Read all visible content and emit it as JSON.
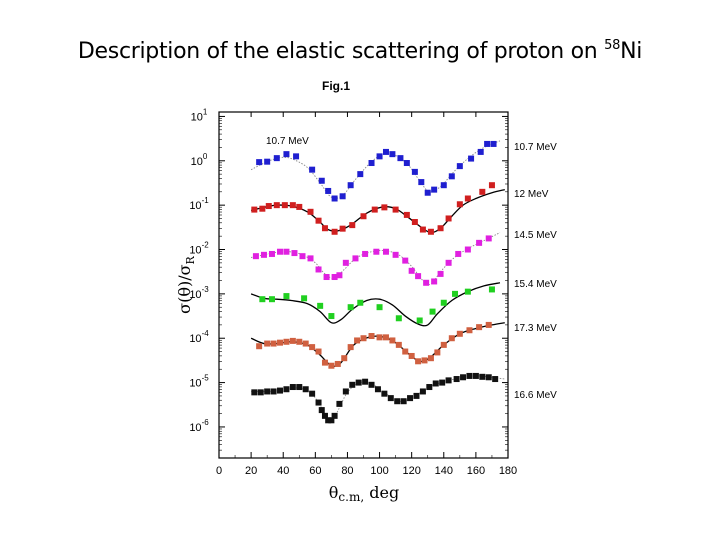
{
  "slide": {
    "title": "Description of the elastic scattering of proton on ",
    "title_sup": "58",
    "title_end": "Ni"
  },
  "chart_data": {
    "type": "scatter",
    "figure_label": "Fig.1",
    "xlabel": "θc.m, deg",
    "ylabel": "σ(θ)/σR",
    "xlim": [
      0,
      180
    ],
    "xticks": [
      0,
      20,
      40,
      60,
      80,
      100,
      120,
      140,
      160,
      180
    ],
    "ylim_exponent": [
      -6.7,
      1.1
    ],
    "yticks": [
      {
        "exp": 1,
        "label": "10",
        "sup": "1"
      },
      {
        "exp": 0,
        "label": "10",
        "sup": "0"
      },
      {
        "exp": -1,
        "label": "10",
        "sup": "-1"
      },
      {
        "exp": -2,
        "label": "10",
        "sup": "-2"
      },
      {
        "exp": -3,
        "label": "10",
        "sup": "-3"
      },
      {
        "exp": -4,
        "label": "10",
        "sup": "-4"
      },
      {
        "exp": -5,
        "label": "10",
        "sup": "-5"
      },
      {
        "exp": -6,
        "label": "10",
        "sup": "-6"
      }
    ],
    "inner_annotation": "10.7 MeV",
    "series": [
      {
        "name": "10.7 MeV",
        "color": "#1f1fd0",
        "line": "dotted",
        "points": [
          [
            25,
            -0.03
          ],
          [
            30,
            -0.02
          ],
          [
            36,
            0.06
          ],
          [
            42,
            0.15
          ],
          [
            48,
            0.1
          ],
          [
            58,
            -0.2
          ],
          [
            64,
            -0.45
          ],
          [
            68,
            -0.68
          ],
          [
            72,
            -0.85
          ],
          [
            77,
            -0.8
          ],
          [
            82,
            -0.55
          ],
          [
            88,
            -0.3
          ],
          [
            95,
            -0.05
          ],
          [
            100,
            0.1
          ],
          [
            104,
            0.2
          ],
          [
            108,
            0.15
          ],
          [
            113,
            0.06
          ],
          [
            117,
            -0.05
          ],
          [
            122,
            -0.25
          ],
          [
            126,
            -0.48
          ],
          [
            130,
            -0.72
          ],
          [
            134,
            -0.65
          ],
          [
            140,
            -0.55
          ],
          [
            145,
            -0.35
          ],
          [
            150,
            -0.12
          ],
          [
            157,
            0.05
          ],
          [
            163,
            0.2
          ],
          [
            167,
            0.38
          ],
          [
            171,
            0.38
          ]
        ],
        "curve": [
          [
            20,
            -0.2
          ],
          [
            30,
            -0.02
          ],
          [
            38,
            0.07
          ],
          [
            45,
            0.05
          ],
          [
            55,
            -0.15
          ],
          [
            63,
            -0.5
          ],
          [
            70,
            -0.82
          ],
          [
            77,
            -0.78
          ],
          [
            85,
            -0.42
          ],
          [
            95,
            -0.02
          ],
          [
            103,
            0.16
          ],
          [
            110,
            0.12
          ],
          [
            118,
            -0.1
          ],
          [
            125,
            -0.45
          ],
          [
            131,
            -0.7
          ],
          [
            138,
            -0.58
          ],
          [
            147,
            -0.22
          ],
          [
            156,
            0.08
          ],
          [
            165,
            0.3
          ],
          [
            175,
            0.45
          ]
        ]
      },
      {
        "name": "12 MeV",
        "color": "#d01f1f",
        "line": "solid",
        "points": [
          [
            22,
            -1.1
          ],
          [
            27,
            -1.08
          ],
          [
            31,
            -1.02
          ],
          [
            36,
            -1.0
          ],
          [
            41,
            -1.0
          ],
          [
            46,
            -1.0
          ],
          [
            50,
            -1.04
          ],
          [
            57,
            -1.15
          ],
          [
            62,
            -1.35
          ],
          [
            66,
            -1.52
          ],
          [
            72,
            -1.6
          ],
          [
            77,
            -1.53
          ],
          [
            83,
            -1.45
          ],
          [
            90,
            -1.25
          ],
          [
            97,
            -1.1
          ],
          [
            103,
            -1.05
          ],
          [
            110,
            -1.1
          ],
          [
            117,
            -1.22
          ],
          [
            122,
            -1.38
          ],
          [
            127,
            -1.55
          ],
          [
            132,
            -1.6
          ],
          [
            138,
            -1.52
          ],
          [
            143,
            -1.3
          ],
          [
            150,
            -0.98
          ],
          [
            155,
            -0.85
          ],
          [
            164,
            -0.7
          ],
          [
            170,
            -0.55
          ]
        ],
        "curve": [
          [
            20,
            -1.12
          ],
          [
            28,
            -1.05
          ],
          [
            36,
            -1.0
          ],
          [
            45,
            -1.02
          ],
          [
            55,
            -1.15
          ],
          [
            62,
            -1.35
          ],
          [
            68,
            -1.55
          ],
          [
            74,
            -1.58
          ],
          [
            82,
            -1.45
          ],
          [
            92,
            -1.18
          ],
          [
            102,
            -1.04
          ],
          [
            110,
            -1.08
          ],
          [
            118,
            -1.28
          ],
          [
            126,
            -1.5
          ],
          [
            132,
            -1.62
          ],
          [
            138,
            -1.52
          ],
          [
            145,
            -1.25
          ],
          [
            152,
            -1.0
          ],
          [
            160,
            -0.85
          ],
          [
            170,
            -0.72
          ],
          [
            178,
            -0.65
          ]
        ]
      },
      {
        "name": "14.5 MeV",
        "color": "#e020e0",
        "line": "dotted",
        "points": [
          [
            23,
            -2.15
          ],
          [
            28,
            -2.12
          ],
          [
            33,
            -2.1
          ],
          [
            38,
            -2.05
          ],
          [
            42,
            -2.05
          ],
          [
            47,
            -2.08
          ],
          [
            52,
            -2.15
          ],
          [
            57,
            -2.2
          ],
          [
            62,
            -2.45
          ],
          [
            67,
            -2.62
          ],
          [
            72,
            -2.62
          ],
          [
            75,
            -2.58
          ],
          [
            79,
            -2.3
          ],
          [
            85,
            -2.2
          ],
          [
            91,
            -2.1
          ],
          [
            98,
            -2.05
          ],
          [
            104,
            -2.05
          ],
          [
            110,
            -2.12
          ],
          [
            116,
            -2.25
          ],
          [
            120,
            -2.48
          ],
          [
            124,
            -2.6
          ],
          [
            129,
            -2.75
          ],
          [
            134,
            -2.72
          ],
          [
            138,
            -2.55
          ],
          [
            143,
            -2.3
          ],
          [
            149,
            -2.1
          ],
          [
            155,
            -2.0
          ],
          [
            162,
            -1.85
          ],
          [
            168,
            -1.75
          ]
        ],
        "curve": [
          [
            20,
            -2.18
          ],
          [
            28,
            -2.12
          ],
          [
            36,
            -2.06
          ],
          [
            44,
            -2.05
          ],
          [
            52,
            -2.12
          ],
          [
            60,
            -2.3
          ],
          [
            66,
            -2.55
          ],
          [
            72,
            -2.65
          ],
          [
            78,
            -2.45
          ],
          [
            86,
            -2.18
          ],
          [
            96,
            -2.04
          ],
          [
            104,
            -2.03
          ],
          [
            112,
            -2.12
          ],
          [
            120,
            -2.38
          ],
          [
            127,
            -2.7
          ],
          [
            132,
            -2.78
          ],
          [
            138,
            -2.5
          ],
          [
            146,
            -2.2
          ],
          [
            155,
            -1.98
          ],
          [
            165,
            -1.8
          ],
          [
            175,
            -1.62
          ]
        ]
      },
      {
        "name": "15.4 MeV",
        "color": "#20d020",
        "line": "solid",
        "points": [
          [
            27,
            -3.12
          ],
          [
            33,
            -3.12
          ],
          [
            42,
            -3.05
          ],
          [
            53,
            -3.1
          ],
          [
            63,
            -3.27
          ],
          [
            70,
            -3.5
          ],
          [
            82,
            -3.3
          ],
          [
            88,
            -3.2
          ],
          [
            100,
            -3.3
          ],
          [
            112,
            -3.55
          ],
          [
            125,
            -3.6
          ],
          [
            133,
            -3.4
          ],
          [
            140,
            -3.2
          ],
          [
            147,
            -3.0
          ],
          [
            155,
            -2.95
          ],
          [
            170,
            -2.9
          ]
        ],
        "curve": [
          [
            20,
            -3.0
          ],
          [
            28,
            -3.1
          ],
          [
            36,
            -3.12
          ],
          [
            45,
            -3.15
          ],
          [
            55,
            -3.22
          ],
          [
            63,
            -3.4
          ],
          [
            70,
            -3.65
          ],
          [
            76,
            -3.58
          ],
          [
            83,
            -3.35
          ],
          [
            92,
            -3.15
          ],
          [
            100,
            -3.12
          ],
          [
            108,
            -3.25
          ],
          [
            116,
            -3.5
          ],
          [
            124,
            -3.68
          ],
          [
            130,
            -3.7
          ],
          [
            136,
            -3.45
          ],
          [
            145,
            -3.15
          ],
          [
            155,
            -2.95
          ],
          [
            165,
            -2.82
          ],
          [
            175,
            -2.75
          ]
        ]
      },
      {
        "name": "17.3 MeV",
        "color": "#d06040",
        "line": "solid",
        "points": [
          [
            25,
            -4.18
          ],
          [
            30,
            -4.12
          ],
          [
            34,
            -4.12
          ],
          [
            38,
            -4.1
          ],
          [
            42,
            -4.08
          ],
          [
            46,
            -4.06
          ],
          [
            50,
            -4.08
          ],
          [
            54,
            -4.12
          ],
          [
            58,
            -4.2
          ],
          [
            62,
            -4.3
          ],
          [
            66,
            -4.55
          ],
          [
            70,
            -4.62
          ],
          [
            74,
            -4.58
          ],
          [
            78,
            -4.45
          ],
          [
            82,
            -4.2
          ],
          [
            86,
            -4.05
          ],
          [
            90,
            -4.0
          ],
          [
            95,
            -3.95
          ],
          [
            100,
            -3.98
          ],
          [
            104,
            -3.98
          ],
          [
            108,
            -4.05
          ],
          [
            112,
            -4.15
          ],
          [
            116,
            -4.3
          ],
          [
            120,
            -4.4
          ],
          [
            124,
            -4.52
          ],
          [
            128,
            -4.5
          ],
          [
            132,
            -4.45
          ],
          [
            136,
            -4.32
          ],
          [
            140,
            -4.15
          ],
          [
            145,
            -4.0
          ],
          [
            150,
            -3.9
          ],
          [
            156,
            -3.82
          ],
          [
            162,
            -3.75
          ],
          [
            168,
            -3.7
          ]
        ],
        "curve": [
          [
            20,
            -4.0
          ],
          [
            28,
            -4.12
          ],
          [
            36,
            -4.12
          ],
          [
            45,
            -4.08
          ],
          [
            55,
            -4.15
          ],
          [
            63,
            -4.38
          ],
          [
            70,
            -4.62
          ],
          [
            76,
            -4.55
          ],
          [
            84,
            -4.15
          ],
          [
            94,
            -3.97
          ],
          [
            102,
            -3.97
          ],
          [
            110,
            -4.1
          ],
          [
            118,
            -4.35
          ],
          [
            125,
            -4.52
          ],
          [
            131,
            -4.45
          ],
          [
            140,
            -4.15
          ],
          [
            150,
            -3.9
          ],
          [
            160,
            -3.78
          ],
          [
            170,
            -3.7
          ],
          [
            178,
            -3.65
          ]
        ]
      },
      {
        "name": "16.6 MeV",
        "color": "#111111",
        "line": "dotted",
        "points": [
          [
            22,
            -5.22
          ],
          [
            26,
            -5.22
          ],
          [
            30,
            -5.2
          ],
          [
            34,
            -5.2
          ],
          [
            38,
            -5.18
          ],
          [
            42,
            -5.15
          ],
          [
            46,
            -5.1
          ],
          [
            50,
            -5.1
          ],
          [
            54,
            -5.15
          ],
          [
            58,
            -5.25
          ],
          [
            62,
            -5.45
          ],
          [
            64,
            -5.62
          ],
          [
            66,
            -5.75
          ],
          [
            68,
            -5.85
          ],
          [
            70,
            -5.85
          ],
          [
            72,
            -5.75
          ],
          [
            75,
            -5.48
          ],
          [
            79,
            -5.2
          ],
          [
            83,
            -5.05
          ],
          [
            87,
            -5.0
          ],
          [
            91,
            -4.98
          ],
          [
            95,
            -5.05
          ],
          [
            99,
            -5.15
          ],
          [
            103,
            -5.25
          ],
          [
            107,
            -5.35
          ],
          [
            111,
            -5.42
          ],
          [
            115,
            -5.42
          ],
          [
            119,
            -5.35
          ],
          [
            123,
            -5.3
          ],
          [
            127,
            -5.2
          ],
          [
            131,
            -5.1
          ],
          [
            135,
            -5.02
          ],
          [
            139,
            -5.0
          ],
          [
            143,
            -4.95
          ],
          [
            148,
            -4.92
          ],
          [
            152,
            -4.88
          ],
          [
            156,
            -4.85
          ],
          [
            160,
            -4.85
          ],
          [
            164,
            -4.87
          ],
          [
            168,
            -4.88
          ],
          [
            172,
            -4.92
          ]
        ],
        "curve": [
          [
            20,
            -5.2
          ],
          [
            30,
            -5.2
          ],
          [
            40,
            -5.17
          ],
          [
            48,
            -5.12
          ],
          [
            56,
            -5.2
          ],
          [
            62,
            -5.45
          ],
          [
            68,
            -5.82
          ],
          [
            73,
            -5.7
          ],
          [
            80,
            -5.22
          ],
          [
            88,
            -5.0
          ],
          [
            96,
            -5.05
          ],
          [
            104,
            -5.25
          ],
          [
            112,
            -5.42
          ],
          [
            120,
            -5.35
          ],
          [
            130,
            -5.12
          ],
          [
            140,
            -4.98
          ],
          [
            150,
            -4.9
          ],
          [
            160,
            -4.85
          ],
          [
            170,
            -4.88
          ],
          [
            178,
            -4.92
          ]
        ]
      }
    ]
  }
}
